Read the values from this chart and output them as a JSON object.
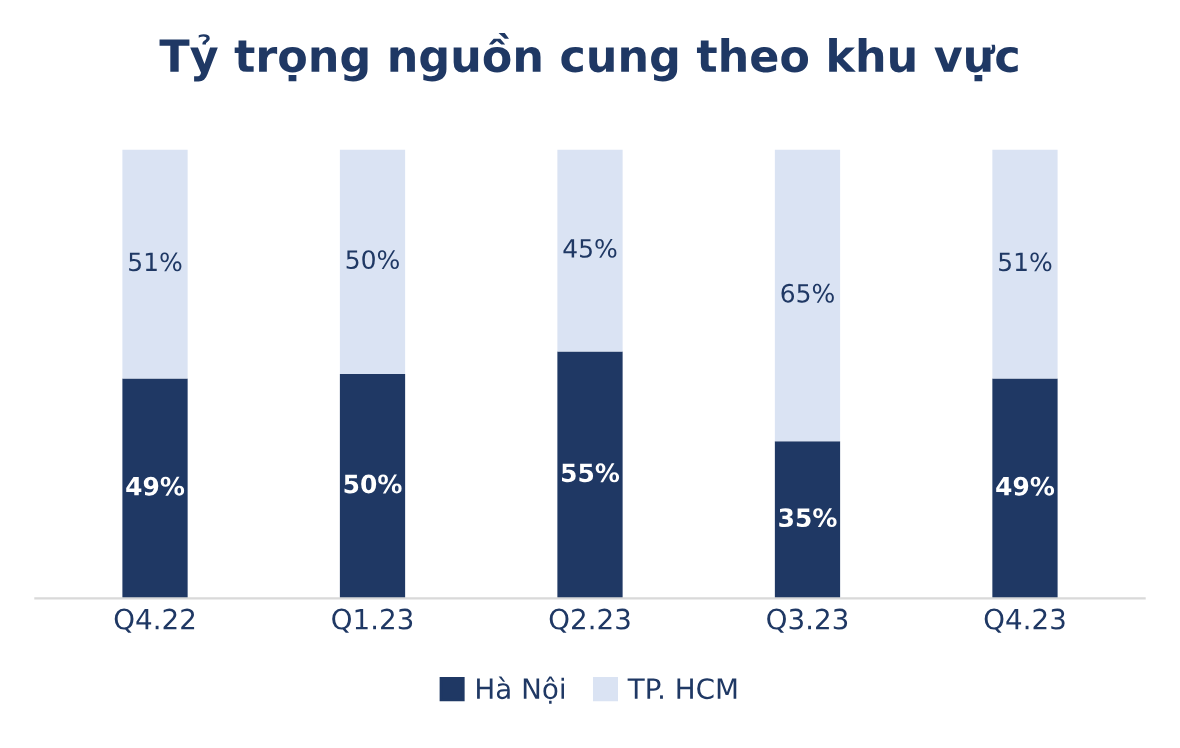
{
  "chart_data": {
    "type": "bar",
    "title": "Tỷ trọng nguồn cung theo khu vực",
    "stacked": true,
    "legend": "bottom",
    "grid": false,
    "categories": [
      "Q4.22",
      "Q1.23",
      "Q2.23",
      "Q3.23",
      "Q4.23"
    ],
    "series": [
      {
        "name": "Hà Nội",
        "color": "#1f3864",
        "values": [
          49,
          50,
          55,
          35,
          49
        ],
        "value_labels": [
          "49%",
          "50%",
          "55%",
          "35%",
          "49%"
        ]
      },
      {
        "name": "TP. HCM",
        "color": "#dae3f3",
        "values": [
          51,
          50,
          45,
          65,
          51
        ],
        "value_labels": [
          "51%",
          "50%",
          "45%",
          "65%",
          "51%"
        ]
      }
    ]
  }
}
